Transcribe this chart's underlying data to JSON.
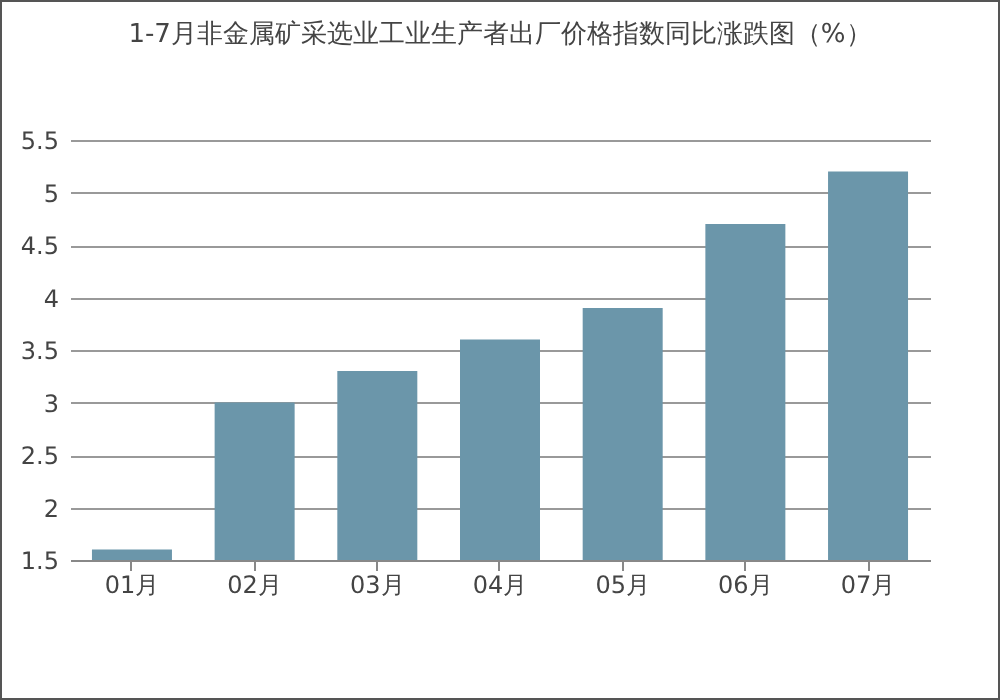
{
  "chart_data": {
    "type": "bar",
    "title": "1-7月非金属矿采选业工业生产者出厂价格指数同比涨跌图（%）",
    "categories": [
      "01月",
      "02月",
      "03月",
      "04月",
      "05月",
      "06月",
      "07月"
    ],
    "values": [
      1.6,
      3.0,
      3.3,
      3.6,
      3.9,
      4.7,
      5.2
    ],
    "color": "#6b96aa",
    "ylim": [
      1.5,
      5.5
    ],
    "yticks": [
      1.5,
      2,
      2.5,
      3,
      3.5,
      4,
      4.5,
      5,
      5.5
    ],
    "grid": "y"
  }
}
